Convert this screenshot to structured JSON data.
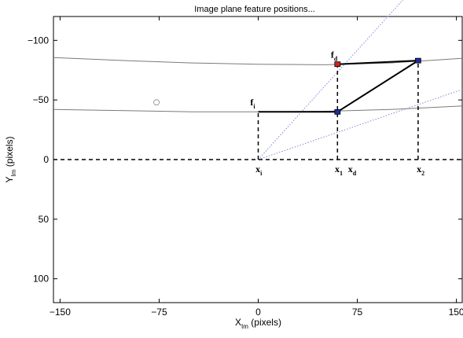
{
  "chart_data": {
    "type": "line",
    "title": "Image plane feature positions...",
    "xlabel": {
      "main": "X",
      "sub": "Im",
      "rest": " (pixels)"
    },
    "ylabel": {
      "main": "Y",
      "sub": "Im",
      "rest": " (pixels)"
    },
    "xlim": [
      -155,
      155
    ],
    "ylim": [
      120,
      -120
    ],
    "y_axis_reversed": true,
    "xticks": [
      -150,
      -75,
      0,
      75,
      150
    ],
    "yticks": [
      -100,
      -50,
      0,
      50,
      100
    ],
    "grid": false,
    "series": [
      {
        "style": "gray-curve",
        "x": [
          -155,
          -100,
          -50,
          0,
          50,
          100,
          155
        ],
        "y": [
          -42,
          -41,
          -40,
          -40,
          -40.5,
          -42,
          -45
        ]
      },
      {
        "style": "gray-curve",
        "x": [
          -155,
          -100,
          -50,
          0,
          50,
          100,
          155
        ],
        "y": [
          -85.5,
          -83,
          -81,
          -80,
          -79.5,
          -81,
          -85
        ]
      },
      {
        "style": "dotted-blue",
        "x": [
          0,
          155
        ],
        "y": [
          0,
          -59
        ]
      },
      {
        "style": "dotted-blue",
        "x": [
          0,
          121
        ],
        "y": [
          0,
          -148
        ]
      },
      {
        "style": "solid-black",
        "x": [
          0,
          60,
          121
        ],
        "y": [
          -40,
          -40,
          -83
        ]
      },
      {
        "style": "solid-black",
        "x": [
          60,
          121
        ],
        "y": [
          -80,
          -83
        ]
      },
      {
        "style": "dashed-black",
        "x": [
          -155,
          155
        ],
        "y": [
          0,
          0
        ]
      },
      {
        "style": "dashed-black",
        "x": [
          0,
          0
        ],
        "y": [
          0,
          -40
        ]
      },
      {
        "style": "dashed-black",
        "x": [
          60,
          60
        ],
        "y": [
          0,
          -80
        ]
      },
      {
        "style": "dashed-black",
        "x": [
          121,
          121
        ],
        "y": [
          0,
          -83
        ]
      }
    ],
    "points": [
      {
        "x": 60,
        "y": -40,
        "color": "#1f2a9e"
      },
      {
        "x": 121,
        "y": -83,
        "color": "#1f2a9e"
      },
      {
        "x": 60,
        "y": -80,
        "color": "#d62020"
      }
    ],
    "hollow_points": [
      {
        "x": -77,
        "y": -48
      }
    ],
    "annotations": [
      {
        "main": "f",
        "sub": "i",
        "x": -6,
        "y": -48
      },
      {
        "main": "f",
        "sub": "d",
        "x": 55,
        "y": -88
      },
      {
        "main": "x",
        "sub": "i",
        "x": -2,
        "y": 8
      },
      {
        "main": "x",
        "sub": "1",
        "x": 58,
        "y": 8
      },
      {
        "main": "x",
        "sub": "d",
        "x": 68,
        "y": 8
      },
      {
        "main": "x",
        "sub": "2",
        "x": 120,
        "y": 8
      }
    ]
  }
}
